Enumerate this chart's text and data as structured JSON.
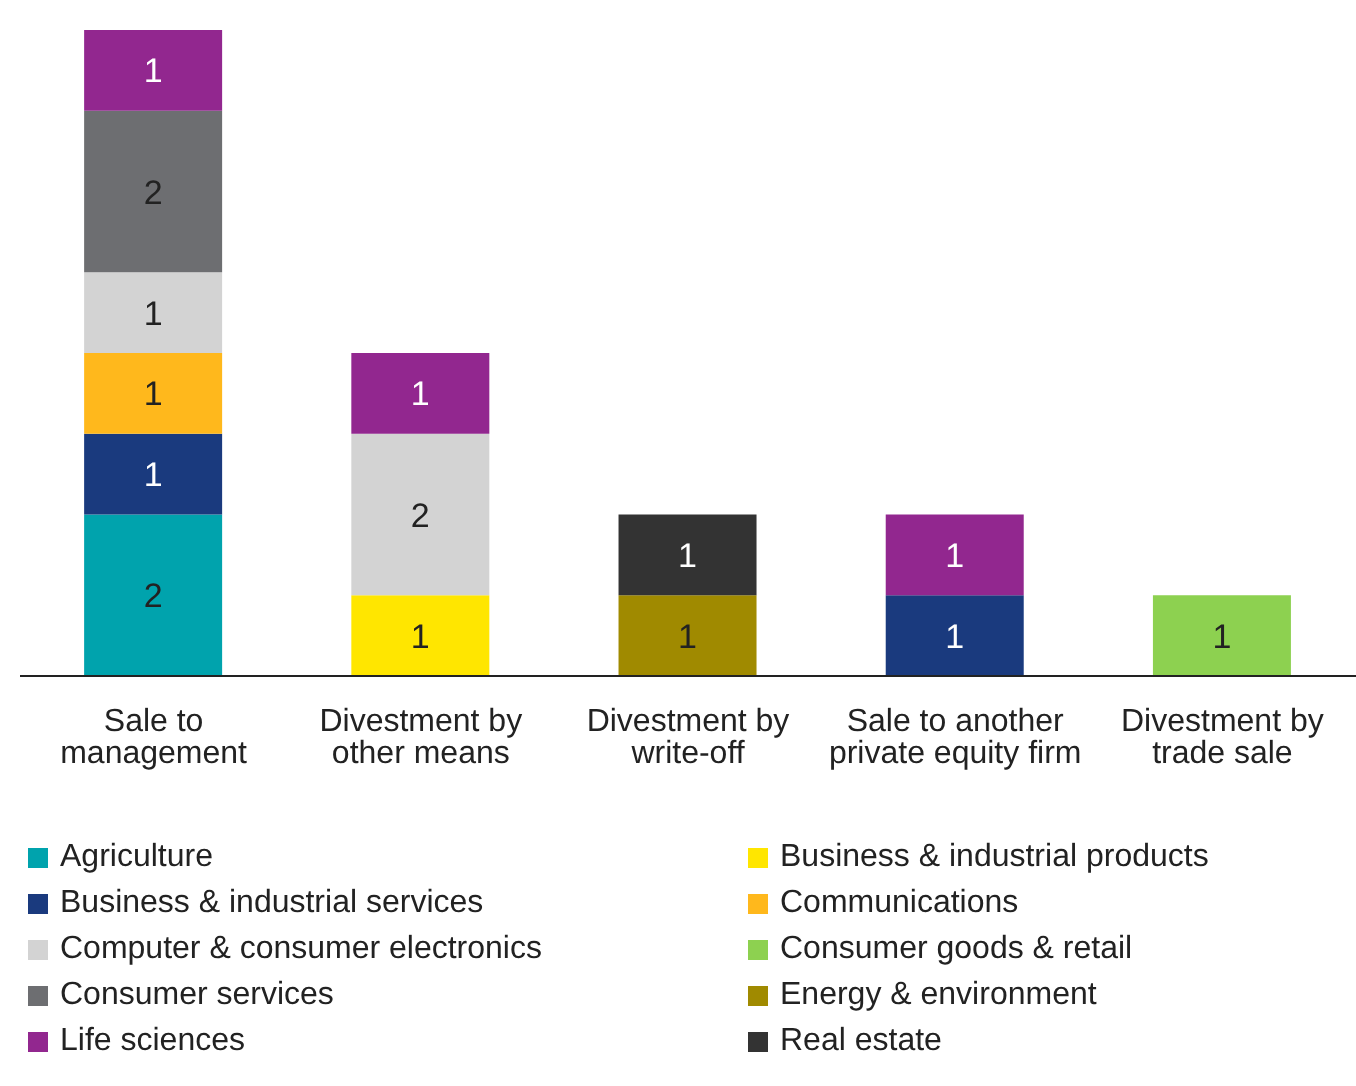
{
  "chart_data": {
    "type": "bar",
    "stacked": true,
    "data_labels": true,
    "legend": "bottom",
    "categories": [
      "Sale to management",
      "Divestment by other means",
      "Divestment by write-off",
      "Sale to another private equity firm",
      "Divestment by trade sale"
    ],
    "series": [
      {
        "name": "Agriculture",
        "color": "#00a3ad",
        "values": [
          2,
          null,
          null,
          null,
          null
        ]
      },
      {
        "name": "Business & industrial products",
        "color": "#ffe600",
        "values": [
          null,
          1,
          null,
          null,
          null
        ]
      },
      {
        "name": "Business & industrial services",
        "color": "#1a3a7e",
        "values": [
          1,
          null,
          null,
          1,
          null
        ]
      },
      {
        "name": "Communications",
        "color": "#ffb81c",
        "values": [
          1,
          null,
          null,
          null,
          null
        ]
      },
      {
        "name": "Computer & consumer electronics",
        "color": "#d3d3d3",
        "values": [
          1,
          2,
          null,
          null,
          null
        ]
      },
      {
        "name": "Consumer goods & retail",
        "color": "#8dd150",
        "values": [
          null,
          null,
          null,
          null,
          1
        ]
      },
      {
        "name": "Consumer services",
        "color": "#6d6e71",
        "values": [
          2,
          null,
          null,
          null,
          null
        ]
      },
      {
        "name": "Energy & environment",
        "color": "#a08a00",
        "values": [
          null,
          null,
          1,
          null,
          null
        ]
      },
      {
        "name": "Life sciences",
        "color": "#92278f",
        "values": [
          1,
          1,
          null,
          1,
          null
        ]
      },
      {
        "name": "Real estate",
        "color": "#333333",
        "values": [
          null,
          null,
          1,
          null,
          null
        ]
      }
    ]
  }
}
